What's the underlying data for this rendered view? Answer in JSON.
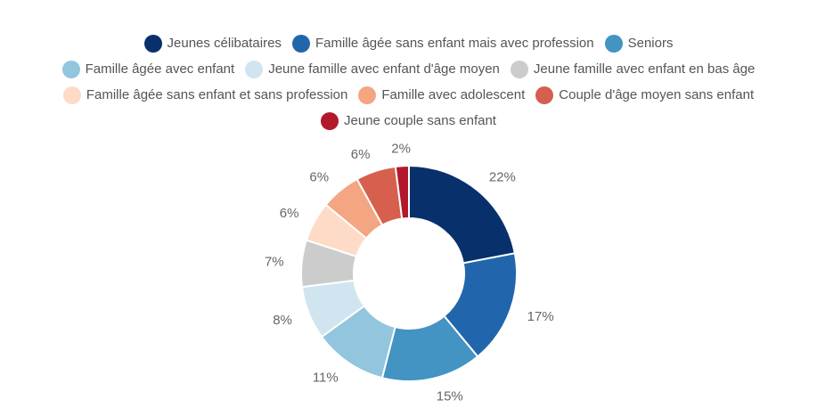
{
  "chart_data": {
    "type": "pie",
    "donut": true,
    "legend_position": "top",
    "categories": [
      "Jeunes célibataires",
      "Famille âgée sans enfant mais avec profession",
      "Seniors",
      "Famille âgée avec enfant",
      "Jeune famille avec enfant d'âge moyen",
      "Jeune famille avec enfant en bas âge",
      "Famille âgée sans enfant et sans profession",
      "Famille avec adolescent",
      "Couple d'âge moyen sans enfant",
      "Jeune couple sans enfant"
    ],
    "values": [
      22,
      17,
      15,
      11,
      8,
      7,
      6,
      6,
      6,
      2
    ],
    "labels": [
      "22%",
      "17%",
      "15%",
      "11%",
      "8%",
      "7%",
      "6%",
      "6%",
      "6%",
      "2%"
    ],
    "colors": [
      "#08306b",
      "#2166ac",
      "#4393c3",
      "#92c5de",
      "#d1e5f0",
      "#cccccc",
      "#fddbc7",
      "#f4a582",
      "#d6604d",
      "#b2182b"
    ],
    "legend_rows": [
      [
        0,
        1,
        2
      ],
      [
        3,
        4,
        5
      ],
      [
        6,
        7,
        8
      ],
      [
        9
      ]
    ]
  }
}
